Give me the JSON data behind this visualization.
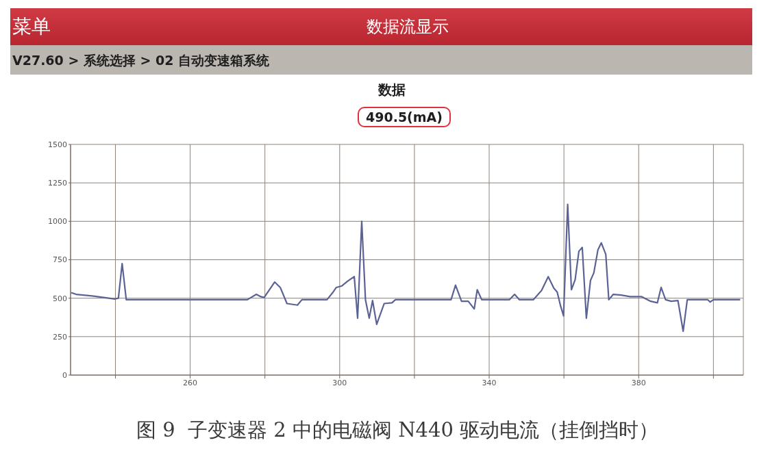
{
  "chart_data": {
    "type": "line",
    "title": "数据",
    "subtitle": "490.5(mA)",
    "annotations": [
      "菜单",
      "数据流显示",
      "V27.60 > 系统选择 > 02 自动变速箱系统",
      "图 9  子变速器 2 中的电磁阀 N440 驱动电流（挂倒挡时）"
    ],
    "x": [
      228.3,
      229.5,
      233.8,
      239.9,
      240.8,
      241.8,
      242.9,
      275.3,
      277.7,
      278.9,
      279.8,
      282.6,
      284.1,
      285.9,
      288.7,
      289.9,
      296.6,
      298.1,
      299.1,
      300.6,
      302.1,
      303.9,
      304.8,
      305.9,
      306.9,
      307.9,
      308.8,
      309.9,
      311.9,
      314.0,
      314.9,
      329.8,
      331.0,
      332.6,
      334.4,
      336.0,
      336.8,
      338.0,
      345.4,
      346.8,
      348.1,
      351.8,
      354.0,
      355.8,
      357.3,
      358.2,
      359.1,
      359.9,
      361.0,
      362.0,
      363.0,
      364.0,
      364.9,
      366.0,
      367.1,
      368.0,
      369.1,
      370.0,
      371.2,
      372.0,
      373.2,
      375.3,
      377.7,
      380.8,
      383.2,
      385.0,
      386.0,
      387.2,
      388.7,
      390.5,
      391.9,
      393.0,
      398.5,
      399.1,
      400.0,
      407.0
    ],
    "values": [
      535,
      525,
      515,
      495,
      500,
      725,
      490,
      490,
      525,
      510,
      505,
      605,
      570,
      465,
      455,
      490,
      490,
      535,
      570,
      580,
      610,
      640,
      370,
      1000,
      490,
      370,
      485,
      330,
      465,
      470,
      490,
      490,
      585,
      480,
      480,
      430,
      555,
      490,
      490,
      525,
      490,
      490,
      550,
      640,
      565,
      540,
      450,
      385,
      1110,
      555,
      620,
      805,
      830,
      370,
      615,
      665,
      815,
      860,
      785,
      490,
      525,
      520,
      510,
      510,
      480,
      470,
      570,
      490,
      480,
      485,
      285,
      490,
      490,
      475,
      490,
      490
    ],
    "color": "#5b6294",
    "xlim": [
      228,
      408
    ],
    "xticks": [
      {
        "value": 240,
        "label": null
      },
      260,
      {
        "value": 280,
        "label": null
      },
      300,
      {
        "value": 320,
        "label": null
      },
      340,
      {
        "value": 360,
        "label": null
      },
      380,
      {
        "value": 400,
        "label": null
      }
    ],
    "ylim": [
      0,
      1500
    ],
    "yticks": [
      0,
      250,
      500,
      750,
      1000,
      1250,
      1500
    ],
    "grid": true
  }
}
